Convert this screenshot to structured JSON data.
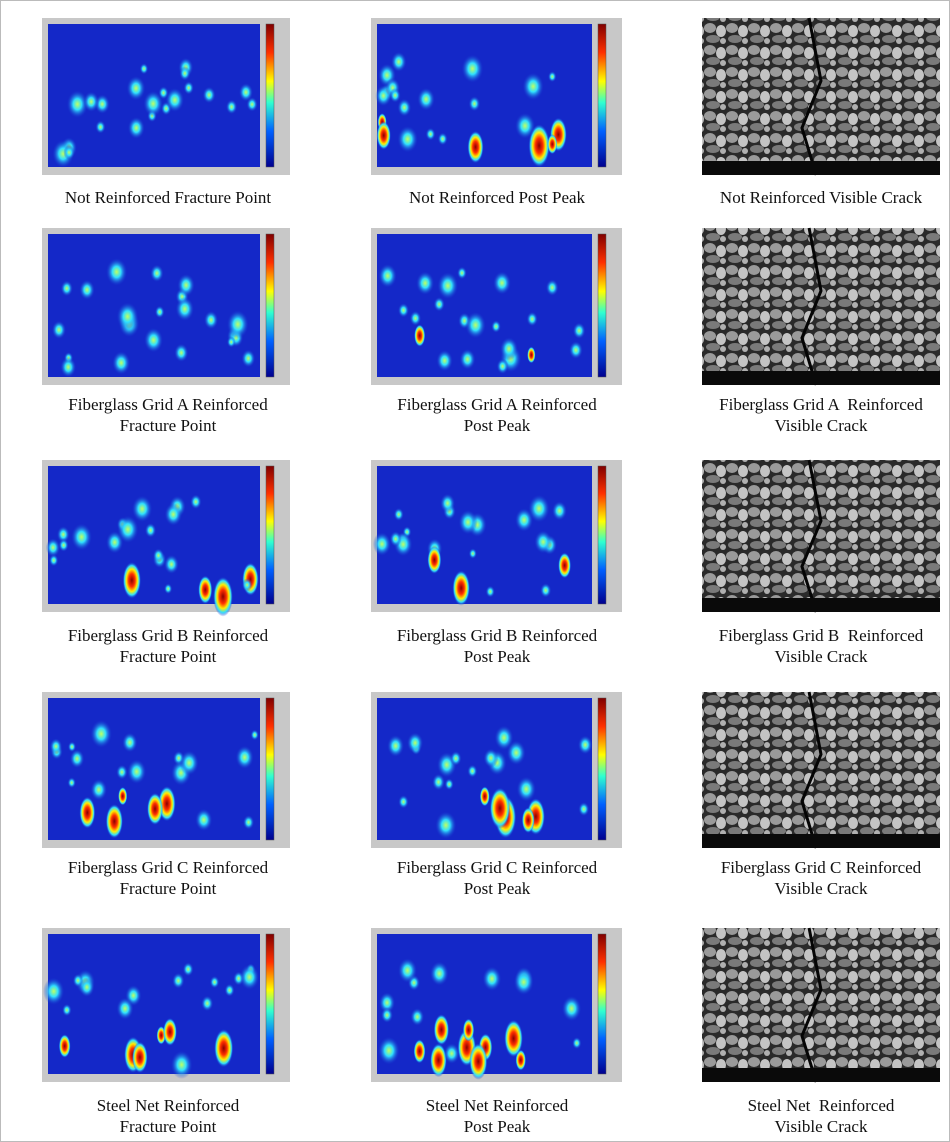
{
  "figure": {
    "rows": [
      [
        [
          "Not Reinforced Fracture Point"
        ],
        [
          "Not Reinforced Post Peak"
        ],
        [
          "Not Reinforced Visible Crack"
        ]
      ],
      [
        [
          "Fiberglass Grid A Reinforced",
          "Fracture Point"
        ],
        [
          "Fiberglass Grid A Reinforced",
          "Post Peak"
        ],
        [
          "Fiberglass Grid A  Reinforced",
          "Visible Crack"
        ]
      ],
      [
        [
          "Fiberglass Grid B Reinforced",
          "Fracture Point"
        ],
        [
          "Fiberglass Grid B Reinforced",
          "Post Peak"
        ],
        [
          "Fiberglass Grid B  Reinforced",
          "Visible Crack"
        ]
      ],
      [
        [
          "Fiberglass Grid C Reinforced",
          "Fracture Point"
        ],
        [
          "Fiberglass Grid C Reinforced",
          "Post Peak"
        ],
        [
          "Fiberglass Grid C Reinforced",
          "Visible Crack"
        ]
      ],
      [
        [
          "Steel Net Reinforced",
          "Fracture Point"
        ],
        [
          "Steel Net Reinforced",
          "Post Peak"
        ],
        [
          "Steel Net  Reinforced",
          "Visible Crack"
        ]
      ]
    ]
  }
}
